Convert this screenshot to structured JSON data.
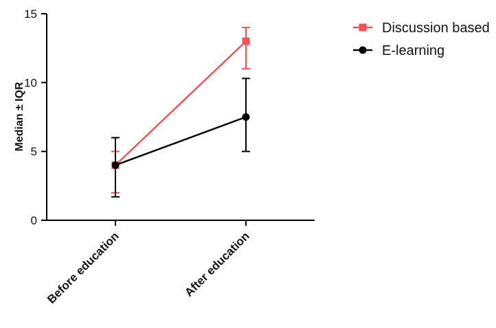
{
  "chart_data": {
    "type": "line",
    "title": "",
    "xlabel": "",
    "ylabel": "Median ± IQR",
    "categories": [
      "Before education",
      "After education"
    ],
    "ylim": [
      0,
      15
    ],
    "yticks": [
      0,
      5,
      10,
      15
    ],
    "grid": false,
    "legend_position": "top-right",
    "series": [
      {
        "name": "Discussion based",
        "color": "#f0525a",
        "marker": "square",
        "values": [
          4,
          13
        ],
        "err_low": [
          2,
          11
        ],
        "err_high": [
          5,
          14
        ]
      },
      {
        "name": "E-learning",
        "color": "#000000",
        "marker": "circle",
        "values": [
          4,
          7.5
        ],
        "err_low": [
          1.7,
          5
        ],
        "err_high": [
          6,
          10.3
        ]
      }
    ]
  }
}
